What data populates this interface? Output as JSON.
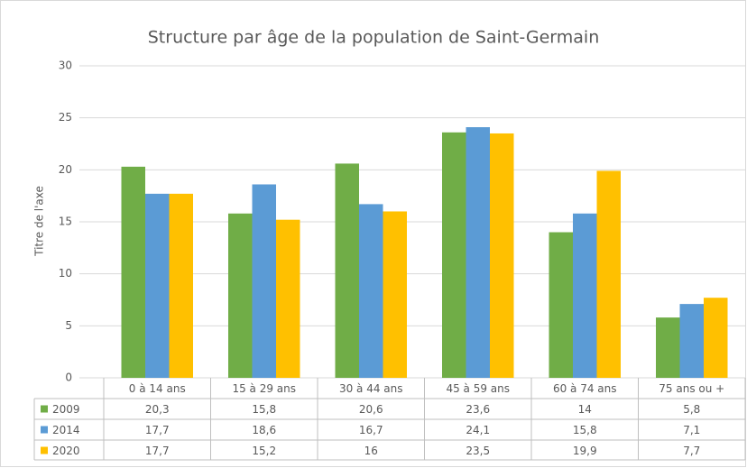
{
  "chart_data": {
    "type": "bar",
    "title": "Structure par âge de la population de Saint-Germain",
    "ylabel": "Titre de l'axe",
    "categories": [
      "0 à 14 ans",
      "15 à 29 ans",
      "30 à 44 ans",
      "45 à 59 ans",
      "60 à 74 ans",
      "75 ans ou +"
    ],
    "series": [
      {
        "name": "2009",
        "color": "#70ad47",
        "values": [
          20.3,
          15.8,
          20.6,
          23.6,
          14,
          5.8
        ],
        "value_labels": [
          "20,3",
          "15,8",
          "20,6",
          "23,6",
          "14",
          "5,8"
        ]
      },
      {
        "name": "2014",
        "color": "#5b9bd5",
        "values": [
          17.7,
          18.6,
          16.7,
          24.1,
          15.8,
          7.1
        ],
        "value_labels": [
          "17,7",
          "18,6",
          "16,7",
          "24,1",
          "15,8",
          "7,1"
        ]
      },
      {
        "name": "2020",
        "color": "#ffc000",
        "values": [
          17.7,
          15.2,
          16,
          23.5,
          19.9,
          7.7
        ],
        "value_labels": [
          "17,7",
          "15,2",
          "16",
          "23,5",
          "19,9",
          "7,7"
        ]
      }
    ],
    "ylim": [
      0,
      30
    ],
    "yticks": [
      0,
      5,
      10,
      15,
      20,
      25,
      30
    ],
    "grid": true
  }
}
